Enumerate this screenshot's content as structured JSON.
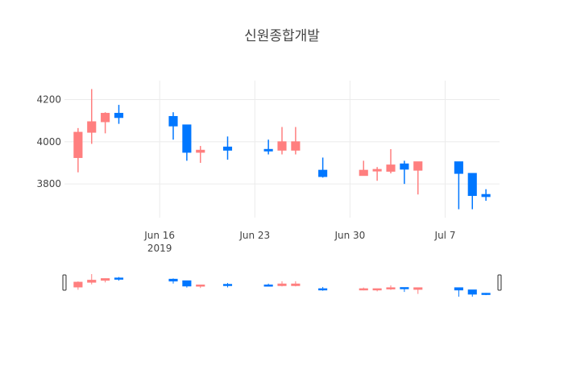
{
  "chart_data": {
    "type": "candlestick",
    "title": "신원종합개발",
    "xlabel": "",
    "ylabel": "",
    "x_tick_labels": [
      "Jun 16",
      "Jun 23",
      "Jun 30",
      "Jul 7"
    ],
    "x_tick_dates": [
      "2019-06-16",
      "2019-06-23",
      "2019-06-30",
      "2019-07-07"
    ],
    "x_sub_label": "2019",
    "y_tick_labels": [
      "3800",
      "4000",
      "4200"
    ],
    "y_ticks": [
      3800,
      4000,
      4200
    ],
    "ylim": [
      3640,
      4290
    ],
    "xlim": [
      "2019-06-09",
      "2019-07-11"
    ],
    "grid": true,
    "legend": "none",
    "range_slider": true,
    "colors": {
      "increasing": "#ff7f7f",
      "decreasing": "#0077ff",
      "grid": "#ebebeb",
      "text": "#444444"
    },
    "candles": [
      {
        "date": "2019-06-10",
        "open": 3925,
        "high": 4065,
        "low": 3855,
        "close": 4045
      },
      {
        "date": "2019-06-11",
        "open": 4045,
        "high": 4250,
        "low": 3990,
        "close": 4095
      },
      {
        "date": "2019-06-12",
        "open": 4095,
        "high": 4140,
        "low": 4040,
        "close": 4135
      },
      {
        "date": "2019-06-13",
        "open": 4135,
        "high": 4175,
        "low": 4085,
        "close": 4115
      },
      {
        "date": "2019-06-17",
        "open": 4120,
        "high": 4140,
        "low": 4010,
        "close": 4075
      },
      {
        "date": "2019-06-18",
        "open": 4080,
        "high": 4080,
        "low": 3910,
        "close": 3950
      },
      {
        "date": "2019-06-19",
        "open": 3950,
        "high": 3980,
        "low": 3900,
        "close": 3960
      },
      {
        "date": "2019-06-21",
        "open": 3975,
        "high": 4025,
        "low": 3915,
        "close": 3960
      },
      {
        "date": "2019-06-24",
        "open": 3960,
        "high": 4010,
        "low": 3940,
        "close": 3955
      },
      {
        "date": "2019-06-25",
        "open": 3960,
        "high": 4070,
        "low": 3940,
        "close": 4000
      },
      {
        "date": "2019-06-26",
        "open": 3960,
        "high": 4070,
        "low": 3940,
        "close": 4000
      },
      {
        "date": "2019-06-28",
        "open": 3865,
        "high": 3925,
        "low": 3830,
        "close": 3835
      },
      {
        "date": "2019-07-01",
        "open": 3840,
        "high": 3910,
        "low": 3840,
        "close": 3865
      },
      {
        "date": "2019-07-02",
        "open": 3860,
        "high": 3880,
        "low": 3815,
        "close": 3865
      },
      {
        "date": "2019-07-03",
        "open": 3860,
        "high": 3965,
        "low": 3850,
        "close": 3890
      },
      {
        "date": "2019-07-04",
        "open": 3895,
        "high": 3910,
        "low": 3800,
        "close": 3870
      },
      {
        "date": "2019-07-05",
        "open": 3865,
        "high": 3905,
        "low": 3750,
        "close": 3905
      },
      {
        "date": "2019-07-08",
        "open": 3905,
        "high": 3905,
        "low": 3680,
        "close": 3850
      },
      {
        "date": "2019-07-09",
        "open": 3850,
        "high": 3850,
        "low": 3680,
        "close": 3745
      },
      {
        "date": "2019-07-10",
        "open": 3750,
        "high": 3775,
        "low": 3720,
        "close": 3740
      }
    ]
  }
}
